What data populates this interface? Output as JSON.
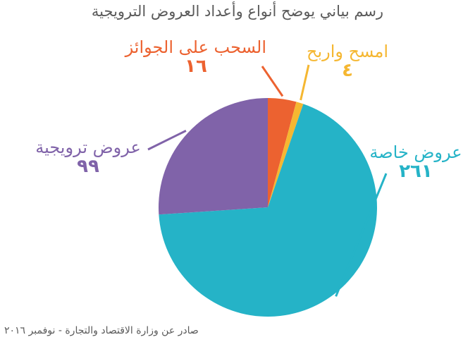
{
  "title": "رسم بياني يوضح أنواع وأعداد العروض الترويجية",
  "source": "صادر عن وزارة الاقتصاد والتجارة - نوفمبر ٢٠١٦",
  "chart_data": {
    "type": "pie",
    "title": "رسم بياني يوضح أنواع وأعداد العروض الترويجية",
    "slices": [
      {
        "label": "السحب على الجوائز",
        "value": 16,
        "value_label": "١٦",
        "color": "#ec6230"
      },
      {
        "label": "امسح واربح",
        "value": 4,
        "value_label": "٤",
        "color": "#f5b731"
      },
      {
        "label": "عروض خاصة",
        "value": 261,
        "value_label": "٢٦١",
        "color": "#25b3c7"
      },
      {
        "label": "عروض ترويجية",
        "value": 99,
        "value_label": "٩٩",
        "color": "#8063a9"
      }
    ]
  }
}
